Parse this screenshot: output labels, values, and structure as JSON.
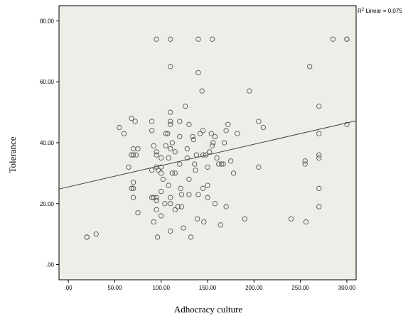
{
  "chart_data": {
    "type": "scatter",
    "xlabel": "Adhocracy culture",
    "ylabel": "Tolerance",
    "xlim": [
      -10,
      310
    ],
    "ylim": [
      -5,
      85
    ],
    "xticks": [
      0,
      50,
      100,
      150,
      200,
      250,
      300
    ],
    "yticks": [
      0,
      20,
      40,
      60,
      80
    ],
    "xtick_labels": [
      ".00",
      "50.00",
      "100.00",
      "150.00",
      "200.00",
      "250.00",
      "300.00"
    ],
    "ytick_labels": [
      ".00",
      "20.00",
      "40.00",
      "60.00",
      "80.00"
    ],
    "grid": false,
    "plot_background": "#efede8",
    "marker_color": "#555555",
    "fit_line": {
      "label_prefix": "R",
      "label_sup": "2",
      "label_suffix": " Linear = 0.075",
      "intercept": 25.5,
      "slope": 0.07,
      "color": "#444444"
    },
    "points": [
      [
        20,
        9
      ],
      [
        20,
        9
      ],
      [
        30,
        10
      ],
      [
        55,
        45
      ],
      [
        60,
        43
      ],
      [
        65,
        32
      ],
      [
        68,
        48
      ],
      [
        70,
        38
      ],
      [
        72,
        47
      ],
      [
        68,
        36
      ],
      [
        70,
        36
      ],
      [
        75,
        38
      ],
      [
        73,
        36
      ],
      [
        68,
        25
      ],
      [
        70,
        25
      ],
      [
        70,
        22
      ],
      [
        70,
        27
      ],
      [
        75,
        17
      ],
      [
        90,
        47
      ],
      [
        90,
        44
      ],
      [
        92,
        39
      ],
      [
        95,
        37
      ],
      [
        95,
        36
      ],
      [
        90,
        31
      ],
      [
        92,
        22
      ],
      [
        90,
        22
      ],
      [
        95,
        22
      ],
      [
        95,
        21
      ],
      [
        92,
        14
      ],
      [
        95,
        18
      ],
      [
        96,
        9
      ],
      [
        95,
        32
      ],
      [
        97,
        31
      ],
      [
        100,
        35
      ],
      [
        100,
        30
      ],
      [
        100,
        32
      ],
      [
        100,
        24
      ],
      [
        100,
        16
      ],
      [
        102,
        28
      ],
      [
        104,
        20
      ],
      [
        105,
        39
      ],
      [
        105,
        43
      ],
      [
        107,
        43
      ],
      [
        110,
        50
      ],
      [
        110,
        47
      ],
      [
        110,
        46
      ],
      [
        110,
        38
      ],
      [
        108,
        35
      ],
      [
        112,
        30
      ],
      [
        108,
        26
      ],
      [
        110,
        22
      ],
      [
        110,
        20
      ],
      [
        110,
        11
      ],
      [
        112,
        40
      ],
      [
        115,
        37
      ],
      [
        115,
        30
      ],
      [
        115,
        18
      ],
      [
        118,
        19
      ],
      [
        120,
        47
      ],
      [
        120,
        42
      ],
      [
        120,
        33
      ],
      [
        121,
        25
      ],
      [
        122,
        19
      ],
      [
        122,
        23
      ],
      [
        124,
        12
      ],
      [
        126,
        52
      ],
      [
        128,
        38
      ],
      [
        128,
        35
      ],
      [
        130,
        46
      ],
      [
        130,
        28
      ],
      [
        130,
        23
      ],
      [
        132,
        9
      ],
      [
        134,
        42
      ],
      [
        135,
        41
      ],
      [
        136,
        33
      ],
      [
        137,
        31
      ],
      [
        138,
        36
      ],
      [
        139,
        15
      ],
      [
        140,
        23
      ],
      [
        140,
        63
      ],
      [
        142,
        43
      ],
      [
        144,
        57
      ],
      [
        145,
        44
      ],
      [
        145,
        36
      ],
      [
        145,
        25
      ],
      [
        146,
        14
      ],
      [
        148,
        36
      ],
      [
        150,
        32
      ],
      [
        150,
        26
      ],
      [
        150,
        22
      ],
      [
        152,
        37
      ],
      [
        154,
        43
      ],
      [
        155,
        39
      ],
      [
        156,
        40
      ],
      [
        158,
        42
      ],
      [
        158,
        20
      ],
      [
        160,
        35
      ],
      [
        162,
        33
      ],
      [
        164,
        13
      ],
      [
        165,
        33
      ],
      [
        167,
        33
      ],
      [
        168,
        40
      ],
      [
        170,
        44
      ],
      [
        170,
        19
      ],
      [
        172,
        46
      ],
      [
        175,
        34
      ],
      [
        178,
        30
      ],
      [
        182,
        43
      ],
      [
        190,
        15
      ],
      [
        195,
        57
      ],
      [
        205,
        47
      ],
      [
        205,
        32
      ],
      [
        210,
        45
      ],
      [
        240,
        15
      ],
      [
        255,
        33
      ],
      [
        255,
        34
      ],
      [
        256,
        14
      ],
      [
        260,
        65
      ],
      [
        270,
        52
      ],
      [
        270,
        43
      ],
      [
        270,
        36
      ],
      [
        270,
        35
      ],
      [
        270,
        25
      ],
      [
        270,
        19
      ],
      [
        285,
        74
      ],
      [
        300,
        74
      ],
      [
        300,
        74
      ],
      [
        300,
        46
      ],
      [
        95,
        74
      ],
      [
        110,
        74
      ],
      [
        140,
        74
      ],
      [
        155,
        74
      ],
      [
        110,
        65
      ]
    ]
  }
}
